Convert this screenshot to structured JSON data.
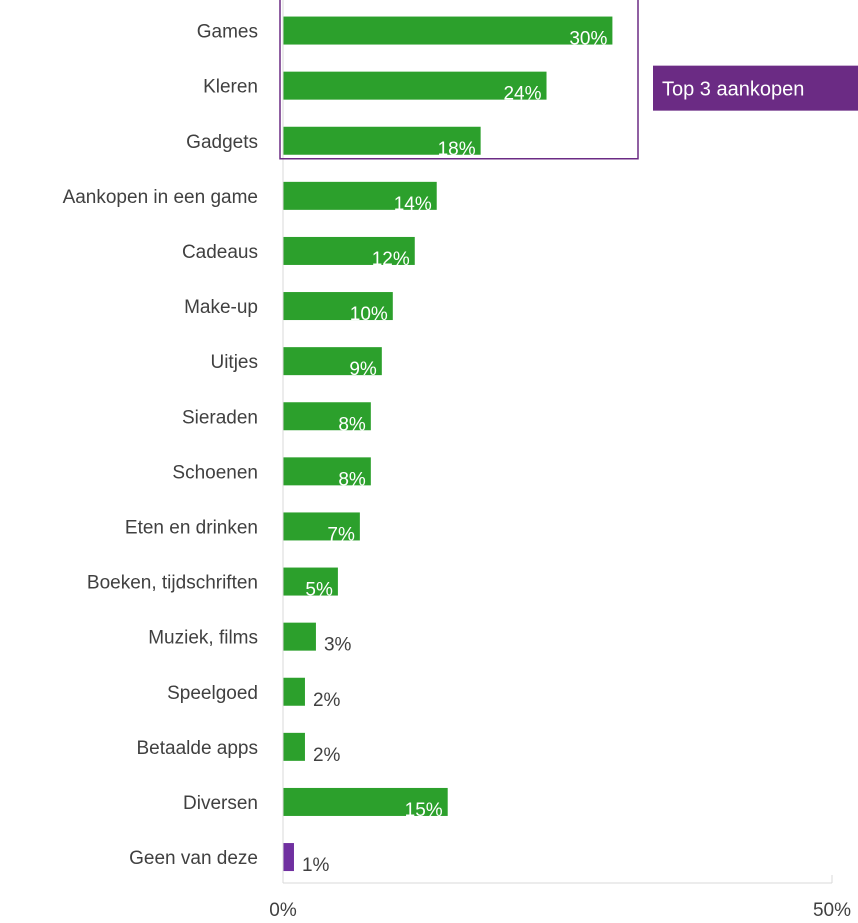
{
  "chart_data": {
    "type": "bar",
    "orientation": "horizontal",
    "title": "",
    "xlabel": "",
    "ylabel": "",
    "xlim": [
      0,
      50
    ],
    "x_ticks": [
      {
        "value": 0,
        "label": "0%"
      },
      {
        "value": 50,
        "label": "50%"
      }
    ],
    "grid": false,
    "legend": "none",
    "categories": [
      "Games",
      "Kleren",
      "Gadgets",
      "Aankopen in een game",
      "Cadeaus",
      "Make-up",
      "Uitjes",
      "Sieraden",
      "Schoenen",
      "Eten en drinken",
      "Boeken, tijdschriften",
      "Muziek, films",
      "Speelgoed",
      "Betaalde apps",
      "Diversen",
      "Geen van deze"
    ],
    "values": [
      30,
      24,
      18,
      14,
      12,
      10,
      9,
      8,
      8,
      7,
      5,
      3,
      2,
      2,
      15,
      1
    ],
    "value_labels": [
      "30%",
      "24%",
      "18%",
      "14%",
      "12%",
      "10%",
      "9%",
      "8%",
      "8%",
      "7%",
      "5%",
      "3%",
      "2%",
      "2%",
      "15%",
      "1%"
    ],
    "bar_colors": [
      "#2ca02c",
      "#2ca02c",
      "#2ca02c",
      "#2ca02c",
      "#2ca02c",
      "#2ca02c",
      "#2ca02c",
      "#2ca02c",
      "#2ca02c",
      "#2ca02c",
      "#2ca02c",
      "#2ca02c",
      "#2ca02c",
      "#2ca02c",
      "#2ca02c",
      "#7030a0"
    ],
    "highlight": {
      "categories": [
        "Games",
        "Kleren",
        "Gadgets"
      ],
      "label": "Top 3 aankopen",
      "border_color": "#6b2b84",
      "fill_color": "#6b2b84"
    },
    "colors": {
      "primary": "#2ca02c",
      "accent": "#7030a0",
      "axis": "#d9d9d9",
      "text": "#404040"
    }
  }
}
